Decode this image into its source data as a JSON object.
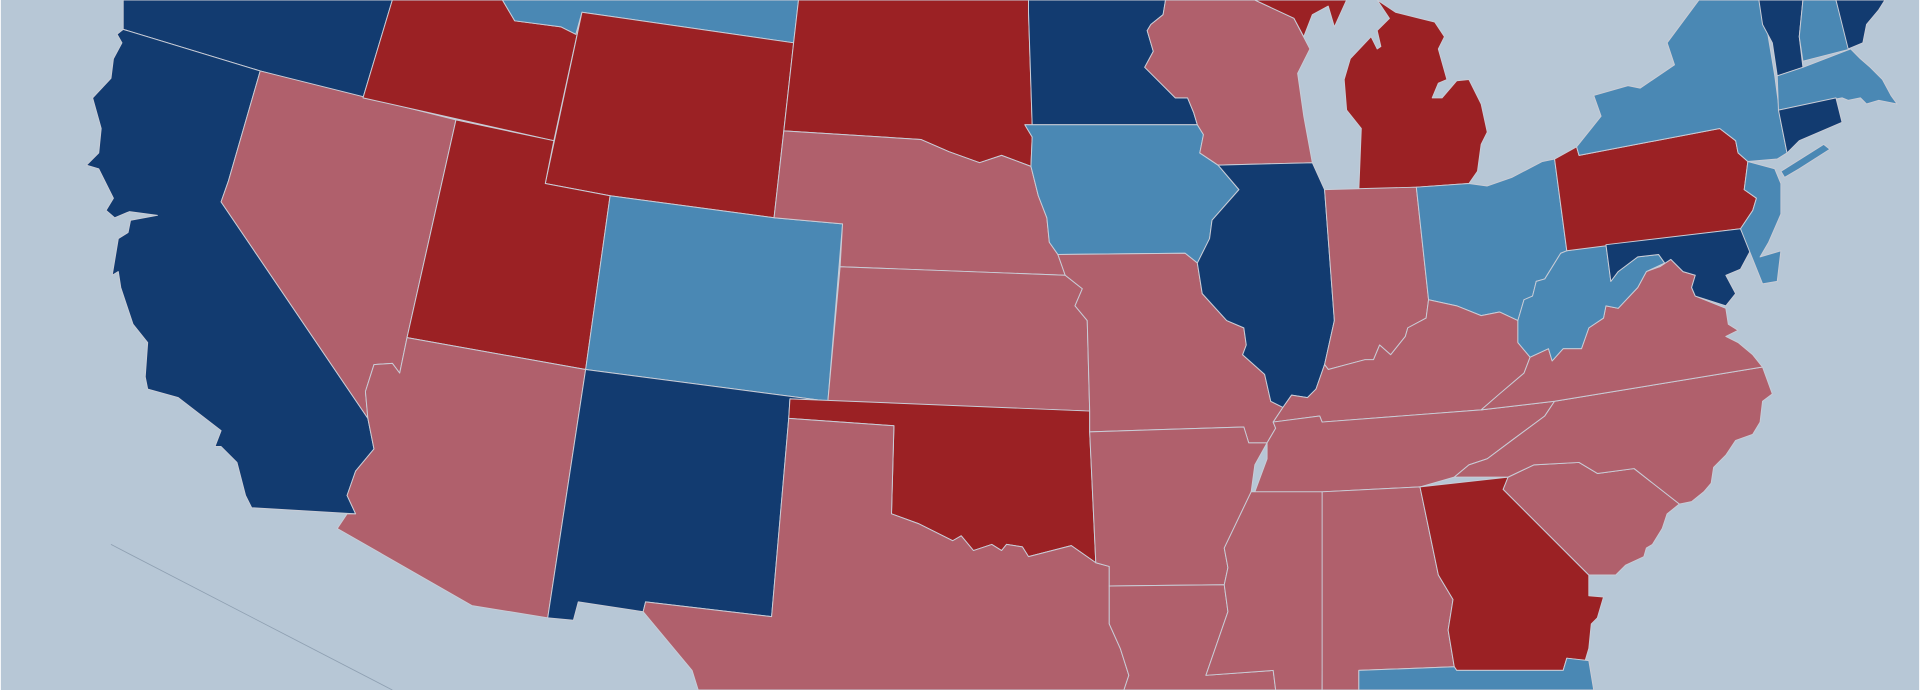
{
  "map": {
    "palette": [
      "#123b70",
      "#4a88b4",
      "#9b2124",
      "#b0606c"
    ],
    "background": "#b7c7d6",
    "border": "#c9ccd6",
    "guide": "#8fa0b2"
  }
}
